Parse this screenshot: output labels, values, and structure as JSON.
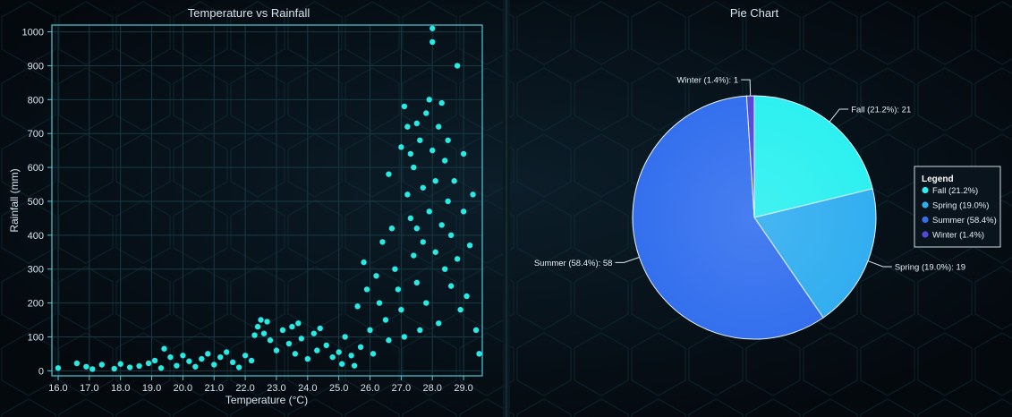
{
  "colors": {
    "background": "#060c12",
    "axis": "#4fc7d6",
    "grid": "#173a44",
    "point": "#2af5ee",
    "slice_outline": "#e8f4ff",
    "legend_border": "#d0dbe5"
  },
  "chart_data": [
    {
      "type": "scatter",
      "title": "Temperature vs Rainfall",
      "xlabel": "Temperature (°C)",
      "ylabel": "Rainfall (mm)",
      "xlim": [
        15.8,
        29.6
      ],
      "ylim": [
        -15,
        1020
      ],
      "grid": true,
      "x_ticks": [
        "16.0",
        "17.0",
        "18.0",
        "19.0",
        "20.0",
        "21.0",
        "22.0",
        "23.0",
        "24.0",
        "25.0",
        "26.0",
        "27.0",
        "28.0",
        "29.0"
      ],
      "y_ticks": [
        "0",
        "100",
        "200",
        "300",
        "400",
        "500",
        "600",
        "700",
        "800",
        "900",
        "1000"
      ],
      "points": [
        [
          16.0,
          8
        ],
        [
          16.6,
          22
        ],
        [
          16.9,
          12
        ],
        [
          17.1,
          5
        ],
        [
          17.4,
          18
        ],
        [
          17.8,
          6
        ],
        [
          18.0,
          20
        ],
        [
          18.3,
          10
        ],
        [
          18.6,
          14
        ],
        [
          18.9,
          22
        ],
        [
          19.1,
          30
        ],
        [
          19.3,
          8
        ],
        [
          19.4,
          65
        ],
        [
          19.6,
          40
        ],
        [
          19.8,
          15
        ],
        [
          20.0,
          45
        ],
        [
          20.2,
          28
        ],
        [
          20.4,
          12
        ],
        [
          20.6,
          35
        ],
        [
          20.8,
          50
        ],
        [
          21.0,
          18
        ],
        [
          21.2,
          40
        ],
        [
          21.4,
          55
        ],
        [
          21.6,
          25
        ],
        [
          21.8,
          10
        ],
        [
          22.0,
          45
        ],
        [
          22.2,
          30
        ],
        [
          22.3,
          105
        ],
        [
          22.4,
          130
        ],
        [
          22.5,
          150
        ],
        [
          22.6,
          110
        ],
        [
          22.7,
          145
        ],
        [
          22.8,
          90
        ],
        [
          23.0,
          60
        ],
        [
          23.2,
          120
        ],
        [
          23.4,
          80
        ],
        [
          23.5,
          130
        ],
        [
          23.6,
          50
        ],
        [
          23.7,
          140
        ],
        [
          23.8,
          95
        ],
        [
          24.0,
          35
        ],
        [
          24.2,
          110
        ],
        [
          24.3,
          60
        ],
        [
          24.4,
          125
        ],
        [
          24.6,
          75
        ],
        [
          24.8,
          40
        ],
        [
          25.0,
          55
        ],
        [
          25.1,
          20
        ],
        [
          25.2,
          100
        ],
        [
          25.4,
          45
        ],
        [
          25.5,
          15
        ],
        [
          25.6,
          190
        ],
        [
          25.7,
          70
        ],
        [
          25.8,
          320
        ],
        [
          25.9,
          240
        ],
        [
          26.0,
          120
        ],
        [
          26.1,
          50
        ],
        [
          26.2,
          280
        ],
        [
          26.3,
          200
        ],
        [
          26.4,
          380
        ],
        [
          26.5,
          150
        ],
        [
          26.6,
          90
        ],
        [
          26.6,
          580
        ],
        [
          26.7,
          420
        ],
        [
          26.8,
          300
        ],
        [
          26.9,
          240
        ],
        [
          27.0,
          180
        ],
        [
          27.0,
          660
        ],
        [
          27.1,
          780
        ],
        [
          27.1,
          100
        ],
        [
          27.2,
          720
        ],
        [
          27.2,
          520
        ],
        [
          27.3,
          450
        ],
        [
          27.3,
          640
        ],
        [
          27.4,
          340
        ],
        [
          27.4,
          600
        ],
        [
          27.5,
          260
        ],
        [
          27.5,
          730
        ],
        [
          27.5,
          420
        ],
        [
          27.6,
          120
        ],
        [
          27.6,
          680
        ],
        [
          27.7,
          380
        ],
        [
          27.7,
          540
        ],
        [
          27.8,
          760
        ],
        [
          27.8,
          200
        ],
        [
          27.9,
          800
        ],
        [
          27.9,
          470
        ],
        [
          28.0,
          1010
        ],
        [
          28.0,
          970
        ],
        [
          28.0,
          650
        ],
        [
          28.1,
          350
        ],
        [
          28.1,
          560
        ],
        [
          28.2,
          720
        ],
        [
          28.2,
          140
        ],
        [
          28.3,
          790
        ],
        [
          28.3,
          430
        ],
        [
          28.4,
          620
        ],
        [
          28.4,
          300
        ],
        [
          28.5,
          500
        ],
        [
          28.5,
          680
        ],
        [
          28.6,
          250
        ],
        [
          28.6,
          400
        ],
        [
          28.7,
          560
        ],
        [
          28.8,
          900
        ],
        [
          28.8,
          330
        ],
        [
          28.9,
          180
        ],
        [
          29.0,
          640
        ],
        [
          29.0,
          470
        ],
        [
          29.1,
          220
        ],
        [
          29.2,
          370
        ],
        [
          29.3,
          520
        ],
        [
          29.4,
          120
        ],
        [
          29.5,
          50
        ]
      ]
    },
    {
      "type": "pie",
      "title": "Pie Chart",
      "slices": [
        {
          "label": "Fall",
          "value": 21,
          "percent": 21.2,
          "callout": "Fall (21.2%): 21",
          "legend": "Fall (21.2%)",
          "color": "#2ef0f0"
        },
        {
          "label": "Spring",
          "value": 19,
          "percent": 19.0,
          "callout": "Spring (19.0%): 19",
          "legend": "Spring (19.0%)",
          "color": "#32aef0"
        },
        {
          "label": "Summer",
          "value": 58,
          "percent": 58.4,
          "callout": "Summer (58.4%): 58",
          "legend": "Summer (58.4%)",
          "color": "#3470ee"
        },
        {
          "label": "Winter",
          "value": 1,
          "percent": 1.4,
          "callout": "Winter (1.4%): 1",
          "legend": "Winter (1.4%)",
          "color": "#5648d8"
        }
      ],
      "legend_title": "Legend",
      "legend_position": "right"
    }
  ]
}
